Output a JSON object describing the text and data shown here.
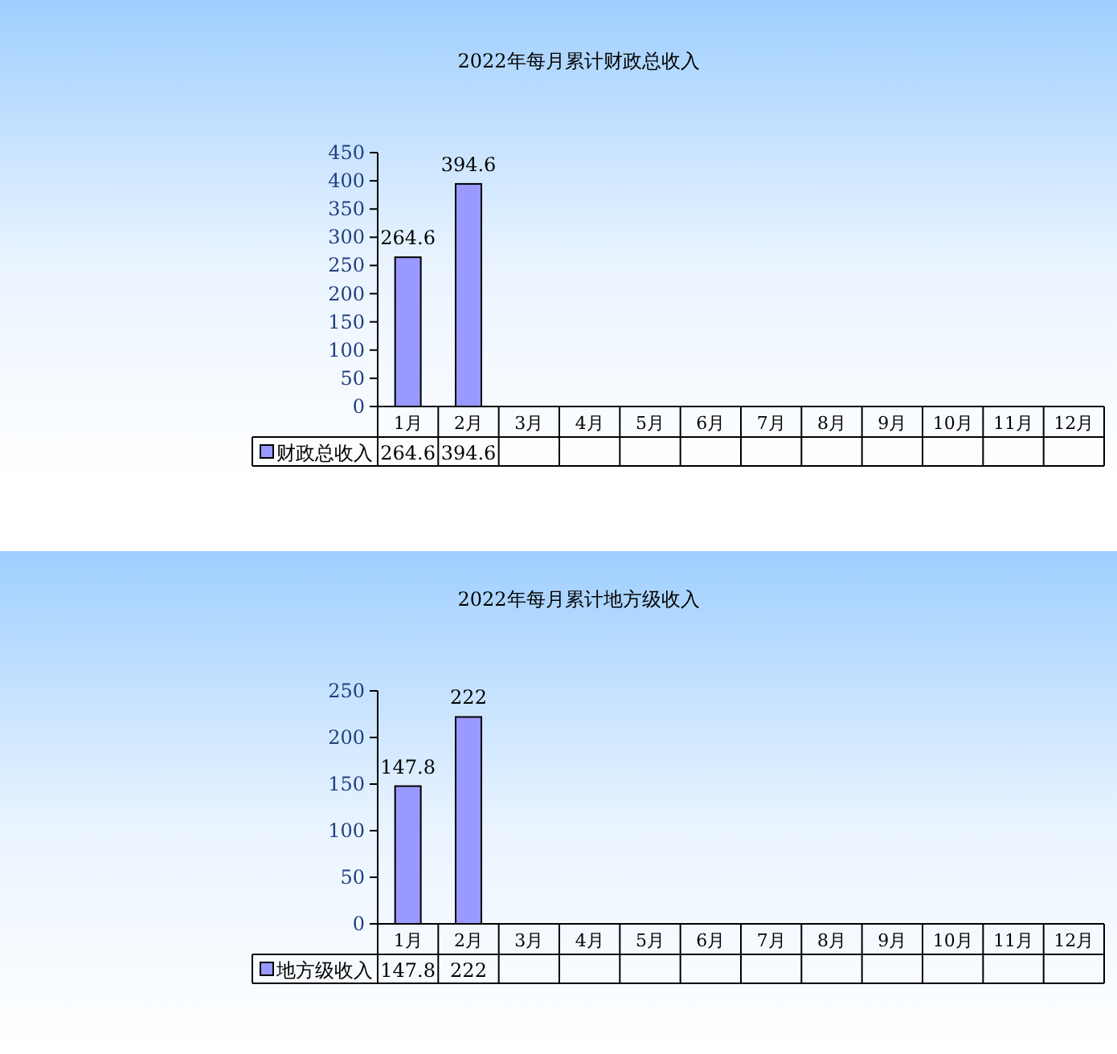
{
  "chart_data": [
    {
      "type": "bar",
      "title": "2022年每月累计财政总收入",
      "categories": [
        "1月",
        "2月",
        "3月",
        "4月",
        "5月",
        "6月",
        "7月",
        "8月",
        "9月",
        "10月",
        "11月",
        "12月"
      ],
      "series": [
        {
          "name": "财政总收入",
          "color": "#9999ff",
          "values": [
            264.6,
            394.6,
            null,
            null,
            null,
            null,
            null,
            null,
            null,
            null,
            null,
            null
          ]
        }
      ],
      "annotations": [
        {
          "text": "264.6",
          "x": "1月",
          "y": 264.6
        },
        {
          "text": "394.6",
          "x": "2月",
          "y": 394.6
        }
      ],
      "ylim": [
        0,
        450
      ],
      "yticks": [
        0,
        50,
        100,
        150,
        200,
        250,
        300,
        350,
        400,
        450
      ],
      "data_labels": true,
      "grid": false,
      "legend": "bottom left"
    },
    {
      "type": "bar",
      "title": "2022年每月累计地方级收入",
      "categories": [
        "1月",
        "2月",
        "3月",
        "4月",
        "5月",
        "6月",
        "7月",
        "8月",
        "9月",
        "10月",
        "11月",
        "12月"
      ],
      "series": [
        {
          "name": "地方级收入",
          "color": "#9999ff",
          "values": [
            147.8,
            222,
            null,
            null,
            null,
            null,
            null,
            null,
            null,
            null,
            null,
            null
          ]
        }
      ],
      "annotations": [
        {
          "text": "147.8",
          "x": "1月",
          "y": 147.8
        },
        {
          "text": "222",
          "x": "2月",
          "y": 222
        }
      ],
      "ylim": [
        0,
        250
      ],
      "yticks": [
        0,
        50,
        100,
        150,
        200,
        250
      ],
      "data_labels": true,
      "grid": false,
      "legend": "bottom left"
    }
  ]
}
